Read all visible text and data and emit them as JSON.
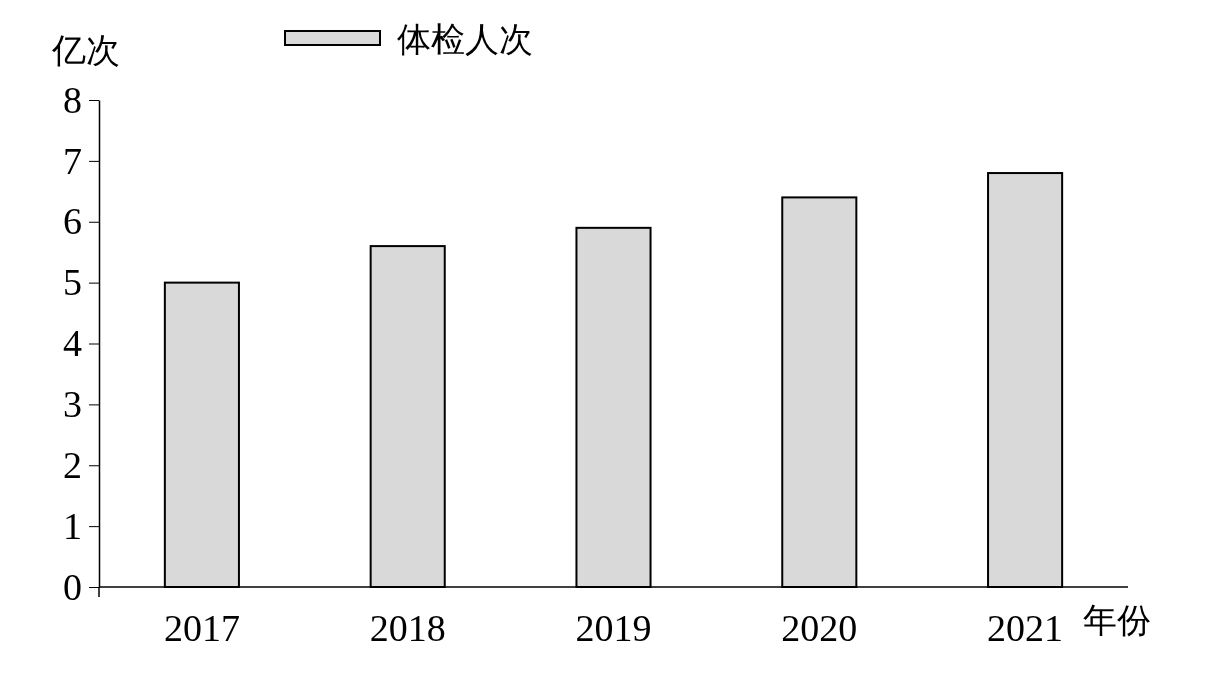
{
  "chart_data": {
    "type": "bar",
    "xlabel": "年份",
    "ylabel": "亿次",
    "categories": [
      "2017",
      "2018",
      "2019",
      "2020",
      "2021"
    ],
    "series": [
      {
        "name": "体检人次",
        "color": "#d9d9d9",
        "values": [
          5.0,
          5.6,
          5.9,
          6.4,
          6.8
        ]
      }
    ],
    "ylim": [
      0,
      8
    ],
    "yticks": [
      0,
      1,
      2,
      3,
      4,
      5,
      6,
      7,
      8
    ],
    "grid": false,
    "legend": "top"
  }
}
